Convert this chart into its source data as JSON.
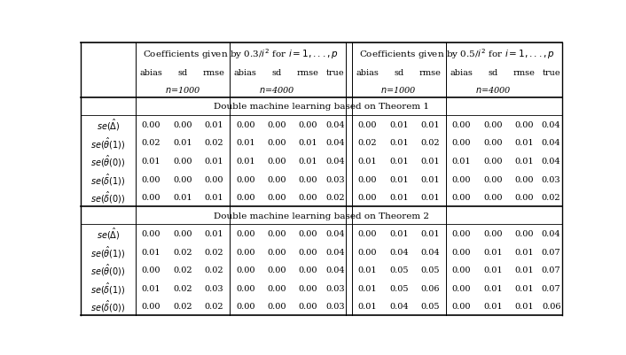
{
  "section1_title": "Double machine learning based on Theorem 1",
  "section2_title": "Double machine learning based on Theorem 2",
  "header_left": "Coefficients given by 0.3/$i^2$ for $i = 1,..., p$",
  "header_right": "Coefficients given by 0.5/$i^2$ for $i = 1,..., p$",
  "col_labels": [
    "abias",
    "sd",
    "rmse",
    "abias",
    "sd",
    "rmse",
    "true",
    "abias",
    "sd",
    "rmse",
    "abias",
    "sd",
    "rmse",
    "true"
  ],
  "n_labels": [
    "n=1000",
    "n=4000",
    "n=1000",
    "n=4000"
  ],
  "row_labels": [
    "$se(\\hat{\\Delta})$",
    "$se(\\hat{\\theta}(1))$",
    "$se(\\hat{\\theta}(0))$",
    "$se(\\hat{\\delta}(1))$",
    "$se(\\hat{\\delta}(0))$"
  ],
  "section1_data": [
    [
      0.0,
      0.0,
      0.01,
      0.0,
      0.0,
      0.0,
      0.04,
      0.0,
      0.01,
      0.01,
      0.0,
      0.0,
      0.0,
      0.04
    ],
    [
      0.02,
      0.01,
      0.02,
      0.01,
      0.0,
      0.01,
      0.04,
      0.02,
      0.01,
      0.02,
      0.0,
      0.0,
      0.01,
      0.04
    ],
    [
      0.01,
      0.0,
      0.01,
      0.01,
      0.0,
      0.01,
      0.04,
      0.01,
      0.01,
      0.01,
      0.01,
      0.0,
      0.01,
      0.04
    ],
    [
      0.0,
      0.0,
      0.0,
      0.0,
      0.0,
      0.0,
      0.03,
      0.0,
      0.01,
      0.01,
      0.0,
      0.0,
      0.0,
      0.03
    ],
    [
      0.0,
      0.01,
      0.01,
      0.0,
      0.0,
      0.0,
      0.02,
      0.0,
      0.01,
      0.01,
      0.0,
      0.0,
      0.0,
      0.02
    ]
  ],
  "section2_data": [
    [
      0.0,
      0.0,
      0.01,
      0.0,
      0.0,
      0.0,
      0.04,
      0.0,
      0.01,
      0.01,
      0.0,
      0.0,
      0.0,
      0.04
    ],
    [
      0.01,
      0.02,
      0.02,
      0.0,
      0.0,
      0.0,
      0.04,
      0.0,
      0.04,
      0.04,
      0.0,
      0.01,
      0.01,
      0.07
    ],
    [
      0.0,
      0.02,
      0.02,
      0.0,
      0.0,
      0.0,
      0.04,
      0.01,
      0.05,
      0.05,
      0.0,
      0.01,
      0.01,
      0.07
    ],
    [
      0.01,
      0.02,
      0.03,
      0.0,
      0.0,
      0.0,
      0.03,
      0.01,
      0.05,
      0.06,
      0.0,
      0.01,
      0.01,
      0.07
    ],
    [
      0.0,
      0.02,
      0.02,
      0.0,
      0.0,
      0.0,
      0.03,
      0.01,
      0.04,
      0.05,
      0.0,
      0.01,
      0.01,
      0.06
    ]
  ],
  "bg_color": "white",
  "text_color": "black"
}
